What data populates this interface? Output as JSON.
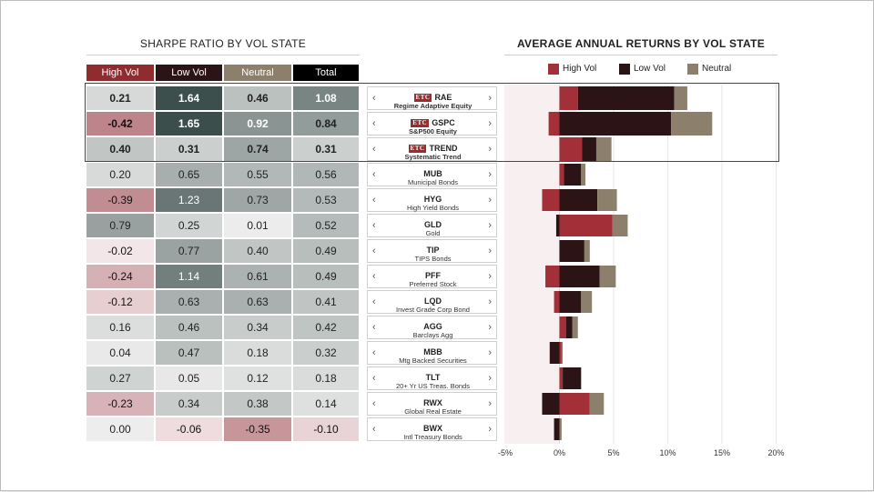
{
  "left_title": "SHARPE RATIO BY VOL STATE",
  "right_title": "AVERAGE ANNUAL RETURNS BY VOL STATE",
  "columns": [
    "High Vol",
    "Low Vol",
    "Neutral",
    "Total"
  ],
  "legend": [
    "High Vol",
    "Low Vol",
    "Neutral"
  ],
  "colors": {
    "high": "#a33038",
    "low": "#2c1315",
    "neutral": "#8c7f6c",
    "highlight": "#8a2a2a"
  },
  "rows": [
    {
      "ticker": "RAE",
      "desc": "Regime Adaptive Equity",
      "etf": true,
      "sharpe": [
        "0.21",
        "1.64",
        "0.46",
        "1.08"
      ]
    },
    {
      "ticker": "GSPC",
      "desc": "S&P500 Equity",
      "etf": true,
      "sharpe": [
        "-0.42",
        "1.65",
        "0.92",
        "0.84"
      ]
    },
    {
      "ticker": "TREND",
      "desc": "Systematic Trend",
      "etf": true,
      "sharpe": [
        "0.40",
        "0.31",
        "0.74",
        "0.31"
      ]
    },
    {
      "ticker": "MUB",
      "desc": "Municipal Bonds",
      "etf": false,
      "sharpe": [
        "0.20",
        "0.65",
        "0.55",
        "0.56"
      ]
    },
    {
      "ticker": "HYG",
      "desc": "High Yield Bonds",
      "etf": false,
      "sharpe": [
        "-0.39",
        "1.23",
        "0.73",
        "0.53"
      ]
    },
    {
      "ticker": "GLD",
      "desc": "Gold",
      "etf": false,
      "sharpe": [
        "0.79",
        "0.25",
        "0.01",
        "0.52"
      ]
    },
    {
      "ticker": "TIP",
      "desc": "TIPS Bonds",
      "etf": false,
      "sharpe": [
        "-0.02",
        "0.77",
        "0.40",
        "0.49"
      ]
    },
    {
      "ticker": "PFF",
      "desc": "Preferred Stock",
      "etf": false,
      "sharpe": [
        "-0.24",
        "1.14",
        "0.61",
        "0.49"
      ]
    },
    {
      "ticker": "LQD",
      "desc": "Invest Grade Corp Bond",
      "etf": false,
      "sharpe": [
        "-0.12",
        "0.63",
        "0.63",
        "0.41"
      ]
    },
    {
      "ticker": "AGG",
      "desc": "Barclays Agg",
      "etf": false,
      "sharpe": [
        "0.16",
        "0.46",
        "0.34",
        "0.42"
      ]
    },
    {
      "ticker": "MBB",
      "desc": "Mtg Backed Securities",
      "etf": false,
      "sharpe": [
        "0.04",
        "0.47",
        "0.18",
        "0.32"
      ]
    },
    {
      "ticker": "TLT",
      "desc": "20+ Yr US Treas. Bonds",
      "etf": false,
      "sharpe": [
        "0.27",
        "0.05",
        "0.12",
        "0.18"
      ]
    },
    {
      "ticker": "RWX",
      "desc": "Global Real Estate",
      "etf": false,
      "sharpe": [
        "-0.23",
        "0.34",
        "0.38",
        "0.14"
      ]
    },
    {
      "ticker": "BWX",
      "desc": "Intl Treasury Bonds",
      "etf": false,
      "sharpe": [
        "0.00",
        "-0.06",
        "-0.35",
        "-0.10"
      ]
    }
  ],
  "chart_data": {
    "type": "bar",
    "orientation": "horizontal",
    "stacked": true,
    "title": "AVERAGE ANNUAL RETURNS BY VOL STATE",
    "categories": [
      "RAE",
      "GSPC",
      "TREND",
      "MUB",
      "HYG",
      "GLD",
      "TIP",
      "PFF",
      "LQD",
      "AGG",
      "MBB",
      "TLT",
      "RWX",
      "BWX"
    ],
    "series": [
      {
        "name": "High Vol",
        "values": [
          1.7,
          -1.0,
          2.1,
          0.4,
          -1.6,
          4.9,
          0.0,
          -1.3,
          -0.5,
          0.6,
          0.2,
          0.3,
          2.8,
          0.0
        ]
      },
      {
        "name": "Low Vol",
        "values": [
          8.9,
          10.3,
          1.3,
          1.6,
          3.5,
          -0.3,
          2.3,
          3.7,
          2.0,
          0.6,
          -0.9,
          1.7,
          -1.6,
          -0.5
        ]
      },
      {
        "name": "Neutral",
        "values": [
          1.2,
          3.8,
          1.4,
          0.4,
          1.8,
          1.4,
          0.5,
          1.5,
          1.0,
          0.5,
          0.1,
          0.0,
          1.3,
          0.2
        ]
      }
    ],
    "xlim": [
      -5,
      20
    ],
    "xticks": [
      "-5%",
      "0%",
      "5%",
      "10%",
      "15%",
      "20%"
    ],
    "xtick_values": [
      -5,
      0,
      5,
      10,
      15,
      20
    ],
    "legend_position": "top"
  }
}
